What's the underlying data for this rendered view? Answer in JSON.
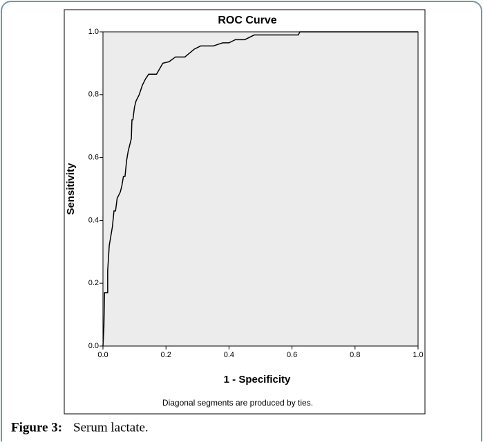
{
  "chart_data": {
    "type": "line",
    "title": "ROC Curve",
    "x_label": "1 - Specificity",
    "y_label": "Sensitivity",
    "annotation": "Diagonal segments are produced by ties.",
    "x": [
      0,
      0.003,
      0.005,
      0.015,
      0.015,
      0.02,
      0.03,
      0.035,
      0.04,
      0.045,
      0.05,
      0.055,
      0.06,
      0.065,
      0.07,
      0.075,
      0.08,
      0.085,
      0.09,
      0.092,
      0.095,
      0.1,
      0.105,
      0.115,
      0.125,
      0.135,
      0.145,
      0.17,
      0.19,
      0.21,
      0.23,
      0.26,
      0.29,
      0.31,
      0.35,
      0.38,
      0.4,
      0.42,
      0.45,
      0.48,
      0.62,
      0.625,
      1.0
    ],
    "values": [
      0,
      0.06,
      0.17,
      0.17,
      0.24,
      0.32,
      0.38,
      0.43,
      0.43,
      0.47,
      0.48,
      0.49,
      0.51,
      0.54,
      0.54,
      0.59,
      0.62,
      0.64,
      0.66,
      0.72,
      0.72,
      0.76,
      0.78,
      0.8,
      0.83,
      0.85,
      0.865,
      0.865,
      0.9,
      0.905,
      0.92,
      0.92,
      0.945,
      0.955,
      0.955,
      0.965,
      0.965,
      0.975,
      0.975,
      0.99,
      0.99,
      1.0,
      1.0
    ],
    "color": "#000000",
    "background": "#ececec",
    "grid": false,
    "xlim": [
      0,
      1
    ],
    "ylim": [
      0,
      1
    ],
    "xticks": [
      {
        "value": 0,
        "label": "0.0"
      },
      0.2,
      0.4,
      0.6,
      0.8,
      {
        "value": 1,
        "label": "1.0"
      }
    ],
    "yticks": [
      {
        "value": 0,
        "label": "0.0"
      },
      0.2,
      0.4,
      0.6,
      0.8,
      {
        "value": 1,
        "label": "1.0"
      }
    ]
  },
  "figure": {
    "label": "Figure 3:",
    "caption": "Serum lactate."
  }
}
